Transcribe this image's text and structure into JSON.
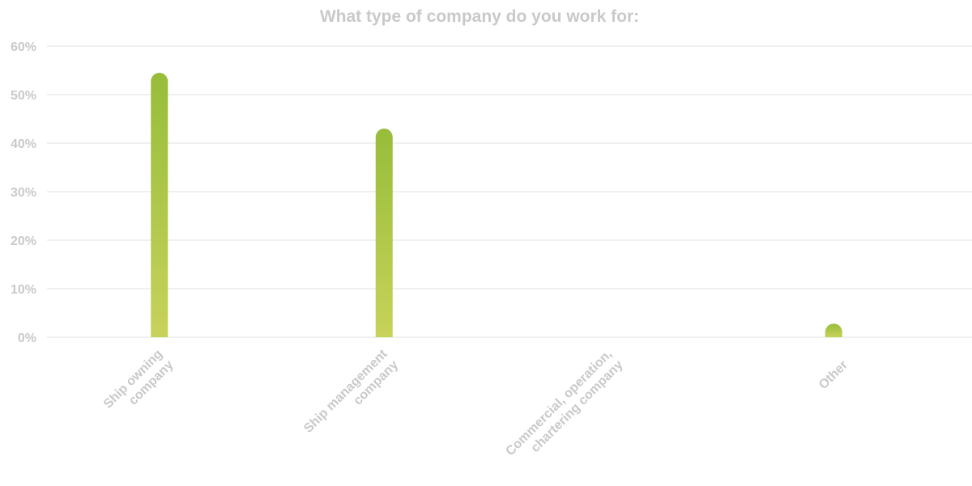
{
  "chart_data": {
    "type": "bar",
    "title": "What type of company do you work for:",
    "categories": [
      [
        "Ship owning",
        "company"
      ],
      [
        "Ship management",
        "company"
      ],
      [
        "Commercial, operation,",
        "chartering company"
      ],
      [
        "Other"
      ]
    ],
    "series": [
      {
        "values": [
          54.5,
          43,
          0,
          2.8
        ]
      }
    ],
    "y_ticks": [
      "0%",
      "10%",
      "20%",
      "30%",
      "40%",
      "50%",
      "60%"
    ],
    "ylim": [
      0,
      60
    ],
    "grid": true,
    "legend": "none",
    "colors": {
      "bar_top": "#97bd3a",
      "bar_bottom": "#c7d25a",
      "grid": "#e2e2e2",
      "text": "#c9c9c9"
    }
  }
}
